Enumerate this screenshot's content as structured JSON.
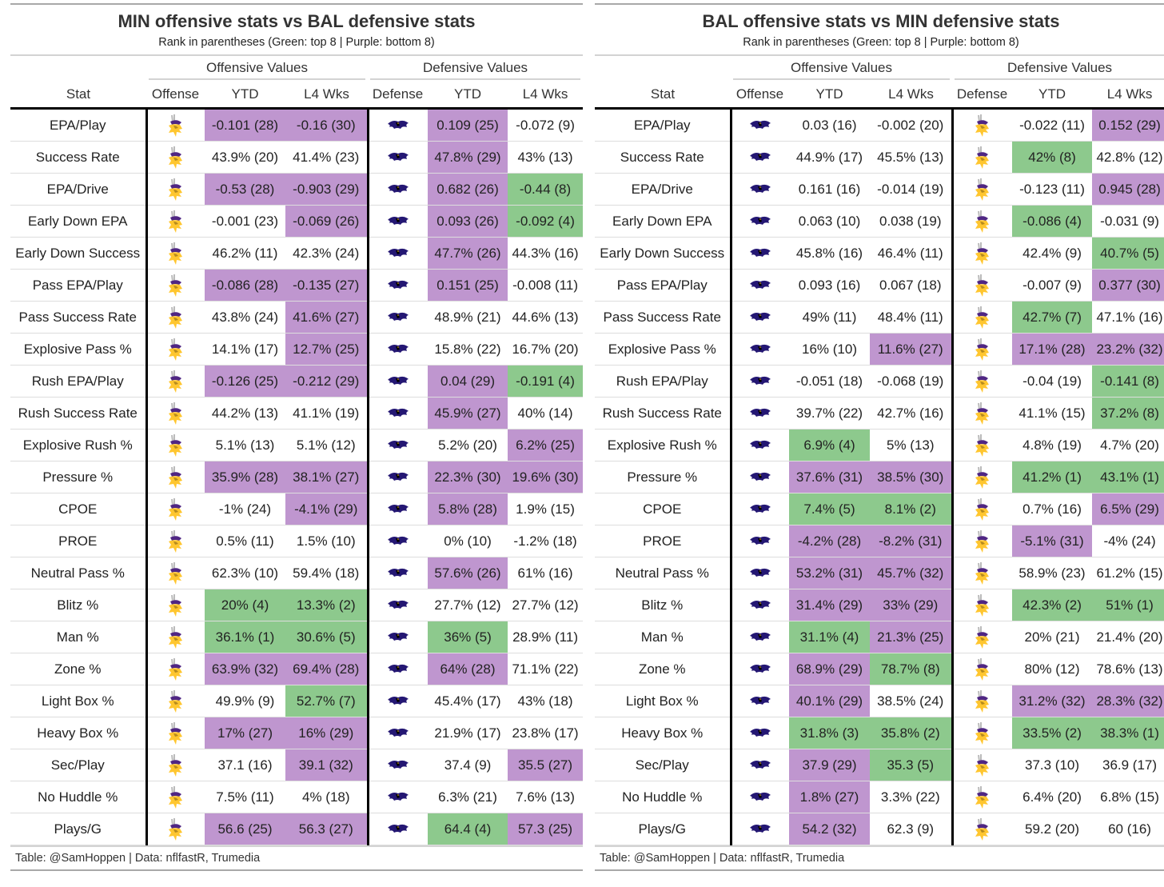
{
  "colors": {
    "purple": "#bf96cf",
    "green": "#8dc98d"
  },
  "tables": [
    {
      "title": "MIN offensive stats vs BAL defensive stats",
      "subtitle": "Rank in parentheses (Green: top 8 | Purple: bottom 8)",
      "spanners": {
        "offense": "Offensive Values",
        "defense": "Defensive Values"
      },
      "columns": [
        "Stat",
        "Offense",
        "YTD",
        "L4 Wks",
        "Defense",
        "YTD",
        "L4 Wks"
      ],
      "offense_logo": "vikings-logo-icon",
      "defense_logo": "ravens-logo-icon",
      "footer": "Table: @SamHoppen | Data: nflfastR, Trumedia",
      "rows": [
        {
          "stat": "EPA/Play",
          "cells": [
            [
              "-0.101 (28)",
              "p"
            ],
            [
              "-0.16 (30)",
              "p"
            ],
            [
              "0.109 (25)",
              "p"
            ],
            [
              "-0.072 (9)",
              ""
            ]
          ]
        },
        {
          "stat": "Success Rate",
          "cells": [
            [
              "43.9% (20)",
              ""
            ],
            [
              "41.4% (23)",
              ""
            ],
            [
              "47.8% (29)",
              "p"
            ],
            [
              "43% (13)",
              ""
            ]
          ]
        },
        {
          "stat": "EPA/Drive",
          "cells": [
            [
              "-0.53 (28)",
              "p"
            ],
            [
              "-0.903 (29)",
              "p"
            ],
            [
              "0.682 (26)",
              "p"
            ],
            [
              "-0.44 (8)",
              "g"
            ]
          ]
        },
        {
          "stat": "Early Down EPA",
          "cells": [
            [
              "-0.001 (23)",
              ""
            ],
            [
              "-0.069 (26)",
              "p"
            ],
            [
              "0.093 (26)",
              "p"
            ],
            [
              "-0.092 (4)",
              "g"
            ]
          ]
        },
        {
          "stat": "Early Down Success",
          "cells": [
            [
              "46.2% (11)",
              ""
            ],
            [
              "42.3% (24)",
              ""
            ],
            [
              "47.7% (26)",
              "p"
            ],
            [
              "44.3% (16)",
              ""
            ]
          ]
        },
        {
          "stat": "Pass EPA/Play",
          "cells": [
            [
              "-0.086 (28)",
              "p"
            ],
            [
              "-0.135 (27)",
              "p"
            ],
            [
              "0.151 (25)",
              "p"
            ],
            [
              "-0.008 (11)",
              ""
            ]
          ]
        },
        {
          "stat": "Pass Success Rate",
          "cells": [
            [
              "43.8% (24)",
              ""
            ],
            [
              "41.6% (27)",
              "p"
            ],
            [
              "48.9% (21)",
              ""
            ],
            [
              "44.6% (13)",
              ""
            ]
          ]
        },
        {
          "stat": "Explosive Pass %",
          "cells": [
            [
              "14.1% (17)",
              ""
            ],
            [
              "12.7% (25)",
              "p"
            ],
            [
              "15.8% (22)",
              ""
            ],
            [
              "16.7% (20)",
              ""
            ]
          ]
        },
        {
          "stat": "Rush EPA/Play",
          "cells": [
            [
              "-0.126 (25)",
              "p"
            ],
            [
              "-0.212 (29)",
              "p"
            ],
            [
              "0.04 (29)",
              "p"
            ],
            [
              "-0.191 (4)",
              "g"
            ]
          ]
        },
        {
          "stat": "Rush Success Rate",
          "cells": [
            [
              "44.2% (13)",
              ""
            ],
            [
              "41.1% (19)",
              ""
            ],
            [
              "45.9% (27)",
              "p"
            ],
            [
              "40% (14)",
              ""
            ]
          ]
        },
        {
          "stat": "Explosive Rush %",
          "cells": [
            [
              "5.1% (13)",
              ""
            ],
            [
              "5.1% (12)",
              ""
            ],
            [
              "5.2% (20)",
              ""
            ],
            [
              "6.2% (25)",
              "p"
            ]
          ]
        },
        {
          "stat": "Pressure %",
          "cells": [
            [
              "35.9% (28)",
              "p"
            ],
            [
              "38.1% (27)",
              "p"
            ],
            [
              "22.3% (30)",
              "p"
            ],
            [
              "19.6% (30)",
              "p"
            ]
          ]
        },
        {
          "stat": "CPOE",
          "cells": [
            [
              "-1% (24)",
              ""
            ],
            [
              "-4.1% (29)",
              "p"
            ],
            [
              "5.8% (28)",
              "p"
            ],
            [
              "1.9% (15)",
              ""
            ]
          ]
        },
        {
          "stat": "PROE",
          "cells": [
            [
              "0.5% (11)",
              ""
            ],
            [
              "1.5% (10)",
              ""
            ],
            [
              "0% (10)",
              ""
            ],
            [
              "-1.2% (18)",
              ""
            ]
          ]
        },
        {
          "stat": "Neutral Pass %",
          "cells": [
            [
              "62.3% (10)",
              ""
            ],
            [
              "59.4% (18)",
              ""
            ],
            [
              "57.6% (26)",
              "p"
            ],
            [
              "61% (16)",
              ""
            ]
          ]
        },
        {
          "stat": "Blitz %",
          "cells": [
            [
              "20% (4)",
              "g"
            ],
            [
              "13.3% (2)",
              "g"
            ],
            [
              "27.7% (12)",
              ""
            ],
            [
              "27.7% (12)",
              ""
            ]
          ]
        },
        {
          "stat": "Man %",
          "cells": [
            [
              "36.1% (1)",
              "g"
            ],
            [
              "30.6% (5)",
              "g"
            ],
            [
              "36% (5)",
              "g"
            ],
            [
              "28.9% (11)",
              ""
            ]
          ]
        },
        {
          "stat": "Zone %",
          "cells": [
            [
              "63.9% (32)",
              "p"
            ],
            [
              "69.4% (28)",
              "p"
            ],
            [
              "64% (28)",
              "p"
            ],
            [
              "71.1% (22)",
              ""
            ]
          ]
        },
        {
          "stat": "Light Box %",
          "cells": [
            [
              "49.9% (9)",
              ""
            ],
            [
              "52.7% (7)",
              "g"
            ],
            [
              "45.4% (17)",
              ""
            ],
            [
              "43% (18)",
              ""
            ]
          ]
        },
        {
          "stat": "Heavy Box %",
          "cells": [
            [
              "17% (27)",
              "p"
            ],
            [
              "16% (29)",
              "p"
            ],
            [
              "21.9% (17)",
              ""
            ],
            [
              "23.8% (17)",
              ""
            ]
          ]
        },
        {
          "stat": "Sec/Play",
          "cells": [
            [
              "37.1 (16)",
              ""
            ],
            [
              "39.1 (32)",
              "p"
            ],
            [
              "37.4 (9)",
              ""
            ],
            [
              "35.5 (27)",
              "p"
            ]
          ]
        },
        {
          "stat": "No Huddle %",
          "cells": [
            [
              "7.5% (11)",
              ""
            ],
            [
              "4% (18)",
              ""
            ],
            [
              "6.3% (21)",
              ""
            ],
            [
              "7.6% (13)",
              ""
            ]
          ]
        },
        {
          "stat": "Plays/G",
          "cells": [
            [
              "56.6 (25)",
              "p"
            ],
            [
              "56.3 (27)",
              "p"
            ],
            [
              "64.4 (4)",
              "g"
            ],
            [
              "57.3 (25)",
              "p"
            ]
          ]
        }
      ]
    },
    {
      "title": "BAL offensive stats vs MIN defensive stats",
      "subtitle": "Rank in parentheses (Green: top 8 | Purple: bottom 8)",
      "spanners": {
        "offense": "Offensive Values",
        "defense": "Defensive Values"
      },
      "columns": [
        "Stat",
        "Offense",
        "YTD",
        "L4 Wks",
        "Defense",
        "YTD",
        "L4 Wks"
      ],
      "offense_logo": "ravens-logo-icon",
      "defense_logo": "vikings-logo-icon",
      "footer": "Table: @SamHoppen | Data: nflfastR, Trumedia",
      "rows": [
        {
          "stat": "EPA/Play",
          "cells": [
            [
              "0.03 (16)",
              ""
            ],
            [
              "-0.002 (20)",
              ""
            ],
            [
              "-0.022 (11)",
              ""
            ],
            [
              "0.152 (29)",
              "p"
            ]
          ]
        },
        {
          "stat": "Success Rate",
          "cells": [
            [
              "44.9% (17)",
              ""
            ],
            [
              "45.5% (13)",
              ""
            ],
            [
              "42% (8)",
              "g"
            ],
            [
              "42.8% (12)",
              ""
            ]
          ]
        },
        {
          "stat": "EPA/Drive",
          "cells": [
            [
              "0.161 (16)",
              ""
            ],
            [
              "-0.014 (19)",
              ""
            ],
            [
              "-0.123 (11)",
              ""
            ],
            [
              "0.945 (28)",
              "p"
            ]
          ]
        },
        {
          "stat": "Early Down EPA",
          "cells": [
            [
              "0.063 (10)",
              ""
            ],
            [
              "0.038 (19)",
              ""
            ],
            [
              "-0.086 (4)",
              "g"
            ],
            [
              "-0.031 (9)",
              ""
            ]
          ]
        },
        {
          "stat": "Early Down Success",
          "cells": [
            [
              "45.8% (16)",
              ""
            ],
            [
              "46.4% (11)",
              ""
            ],
            [
              "42.4% (9)",
              ""
            ],
            [
              "40.7% (5)",
              "g"
            ]
          ]
        },
        {
          "stat": "Pass EPA/Play",
          "cells": [
            [
              "0.093 (16)",
              ""
            ],
            [
              "0.067 (18)",
              ""
            ],
            [
              "-0.007 (9)",
              ""
            ],
            [
              "0.377 (30)",
              "p"
            ]
          ]
        },
        {
          "stat": "Pass Success Rate",
          "cells": [
            [
              "49% (11)",
              ""
            ],
            [
              "48.4% (11)",
              ""
            ],
            [
              "42.7% (7)",
              "g"
            ],
            [
              "47.1% (16)",
              ""
            ]
          ]
        },
        {
          "stat": "Explosive Pass %",
          "cells": [
            [
              "16% (10)",
              ""
            ],
            [
              "11.6% (27)",
              "p"
            ],
            [
              "17.1% (28)",
              "p"
            ],
            [
              "23.2% (32)",
              "p"
            ]
          ]
        },
        {
          "stat": "Rush EPA/Play",
          "cells": [
            [
              "-0.051 (18)",
              ""
            ],
            [
              "-0.068 (19)",
              ""
            ],
            [
              "-0.04 (19)",
              ""
            ],
            [
              "-0.141 (8)",
              "g"
            ]
          ]
        },
        {
          "stat": "Rush Success Rate",
          "cells": [
            [
              "39.7% (22)",
              ""
            ],
            [
              "42.7% (16)",
              ""
            ],
            [
              "41.1% (15)",
              ""
            ],
            [
              "37.2% (8)",
              "g"
            ]
          ]
        },
        {
          "stat": "Explosive Rush %",
          "cells": [
            [
              "6.9% (4)",
              "g"
            ],
            [
              "5% (13)",
              ""
            ],
            [
              "4.8% (19)",
              ""
            ],
            [
              "4.7% (20)",
              ""
            ]
          ]
        },
        {
          "stat": "Pressure %",
          "cells": [
            [
              "37.6% (31)",
              "p"
            ],
            [
              "38.5% (30)",
              "p"
            ],
            [
              "41.2% (1)",
              "g"
            ],
            [
              "43.1% (1)",
              "g"
            ]
          ]
        },
        {
          "stat": "CPOE",
          "cells": [
            [
              "7.4% (5)",
              "g"
            ],
            [
              "8.1% (2)",
              "g"
            ],
            [
              "0.7% (16)",
              ""
            ],
            [
              "6.5% (29)",
              "p"
            ]
          ]
        },
        {
          "stat": "PROE",
          "cells": [
            [
              "-4.2% (28)",
              "p"
            ],
            [
              "-8.2% (31)",
              "p"
            ],
            [
              "-5.1% (31)",
              "p"
            ],
            [
              "-4% (24)",
              ""
            ]
          ]
        },
        {
          "stat": "Neutral Pass %",
          "cells": [
            [
              "53.2% (31)",
              "p"
            ],
            [
              "45.7% (32)",
              "p"
            ],
            [
              "58.9% (23)",
              ""
            ],
            [
              "61.2% (15)",
              ""
            ]
          ]
        },
        {
          "stat": "Blitz %",
          "cells": [
            [
              "31.4% (29)",
              "p"
            ],
            [
              "33% (29)",
              "p"
            ],
            [
              "42.3% (2)",
              "g"
            ],
            [
              "51% (1)",
              "g"
            ]
          ]
        },
        {
          "stat": "Man %",
          "cells": [
            [
              "31.1% (4)",
              "g"
            ],
            [
              "21.3% (25)",
              "p"
            ],
            [
              "20% (21)",
              ""
            ],
            [
              "21.4% (20)",
              ""
            ]
          ]
        },
        {
          "stat": "Zone %",
          "cells": [
            [
              "68.9% (29)",
              "p"
            ],
            [
              "78.7% (8)",
              "g"
            ],
            [
              "80% (12)",
              ""
            ],
            [
              "78.6% (13)",
              ""
            ]
          ]
        },
        {
          "stat": "Light Box %",
          "cells": [
            [
              "40.1% (29)",
              "p"
            ],
            [
              "38.5% (24)",
              ""
            ],
            [
              "31.2% (32)",
              "p"
            ],
            [
              "28.3% (32)",
              "p"
            ]
          ]
        },
        {
          "stat": "Heavy Box %",
          "cells": [
            [
              "31.8% (3)",
              "g"
            ],
            [
              "35.8% (2)",
              "g"
            ],
            [
              "33.5% (2)",
              "g"
            ],
            [
              "38.3% (1)",
              "g"
            ]
          ]
        },
        {
          "stat": "Sec/Play",
          "cells": [
            [
              "37.9 (29)",
              "p"
            ],
            [
              "35.3 (5)",
              "g"
            ],
            [
              "37.3 (10)",
              ""
            ],
            [
              "36.9 (17)",
              ""
            ]
          ]
        },
        {
          "stat": "No Huddle %",
          "cells": [
            [
              "1.8% (27)",
              "p"
            ],
            [
              "3.3% (22)",
              ""
            ],
            [
              "6.4% (20)",
              ""
            ],
            [
              "6.8% (15)",
              ""
            ]
          ]
        },
        {
          "stat": "Plays/G",
          "cells": [
            [
              "54.2 (32)",
              "p"
            ],
            [
              "62.3 (9)",
              ""
            ],
            [
              "59.2 (20)",
              ""
            ],
            [
              "60 (16)",
              ""
            ]
          ]
        }
      ]
    }
  ]
}
